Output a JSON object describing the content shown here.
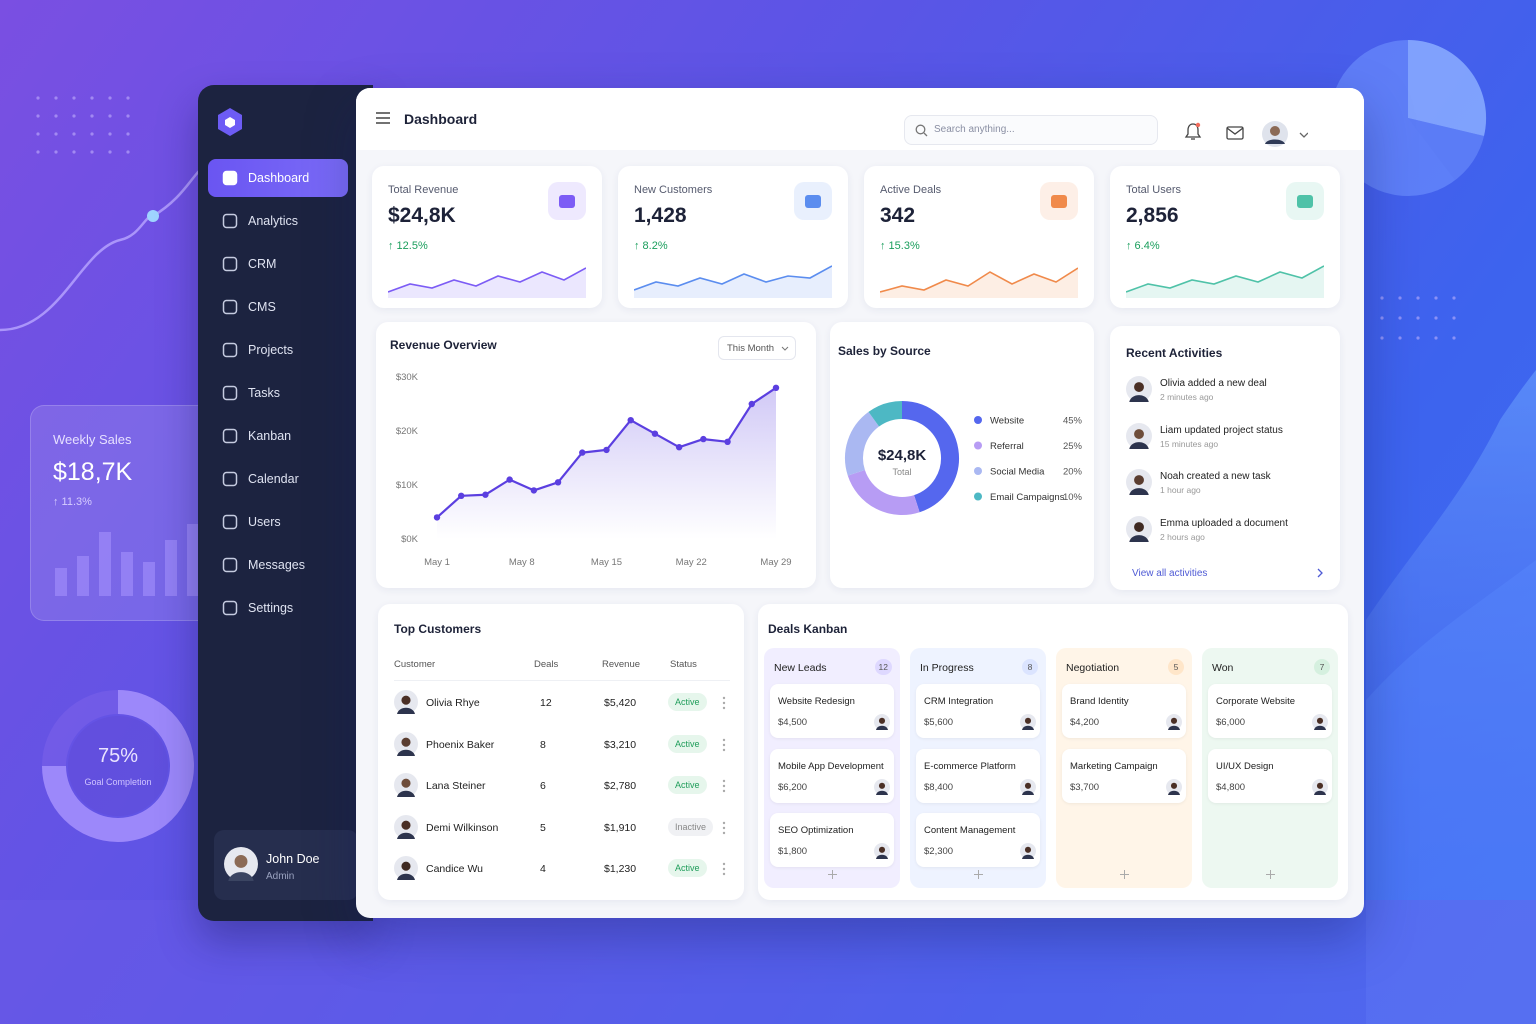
{
  "background": {
    "weekly_sales": {
      "title": "Weekly Sales",
      "value": "$18,7K",
      "change": "↑ 11.3%"
    },
    "goal": {
      "value": 75,
      "value_label": "75%",
      "label": "Goal Completion"
    }
  },
  "sidebar": {
    "nav": [
      "Dashboard",
      "Analytics",
      "CRM",
      "CMS",
      "Projects",
      "Tasks",
      "Kanban",
      "Calendar",
      "Users",
      "Messages",
      "Settings"
    ],
    "user": {
      "name": "John Doe",
      "role": "Admin"
    }
  },
  "header": {
    "title": "Dashboard",
    "search_placeholder": "Search anything..."
  },
  "kpis": [
    {
      "label": "Total Revenue",
      "value": "$24,8K",
      "change": "↑ 12.5%",
      "color": "#7c5cf5"
    },
    {
      "label": "New Customers",
      "value": "1,428",
      "change": "↑ 8.2%",
      "color": "#5b8def"
    },
    {
      "label": "Active Deals",
      "value": "342",
      "change": "↑ 15.3%",
      "color": "#f08a4b"
    },
    {
      "label": "Total Users",
      "value": "2,856",
      "change": "↑ 6.4%",
      "color": "#4fc2a8"
    }
  ],
  "chart_data": [
    {
      "type": "line",
      "title": "Revenue Overview",
      "period": "This Month",
      "color": "#5b3fe0",
      "x": [
        1,
        3,
        5,
        7,
        9,
        11,
        13,
        15,
        17,
        19,
        21,
        23,
        25,
        27,
        29
      ],
      "values": [
        4000,
        8000,
        8200,
        11000,
        9000,
        10500,
        16000,
        16500,
        22000,
        19500,
        17000,
        18500,
        18000,
        25000,
        28000
      ],
      "xlim": [
        1,
        29
      ],
      "xticks": [
        {
          "value": 1,
          "label": "May 1"
        },
        {
          "value": 8,
          "label": "May 8"
        },
        {
          "value": 15,
          "label": "May 15"
        },
        {
          "value": 22,
          "label": "May 22"
        },
        {
          "value": 29,
          "label": "May 29"
        }
      ],
      "ylim": [
        0,
        30000
      ],
      "yticks": [
        {
          "value": 0,
          "label": "$0K"
        },
        {
          "value": 10000,
          "label": "$10K"
        },
        {
          "value": 20000,
          "label": "$20K"
        },
        {
          "value": 30000,
          "label": "$30K"
        }
      ],
      "grid": false
    },
    {
      "type": "pie",
      "title": "Sales by Source",
      "center_label": "$24,8K",
      "center_sublabel": "Total",
      "categories": [
        "Website",
        "Referral",
        "Social Media",
        "Email Campaigns"
      ],
      "values": [
        45,
        25,
        20,
        10
      ],
      "value_labels": [
        "45%",
        "25%",
        "20%",
        "10%"
      ],
      "colors": [
        "#5567ee",
        "#b79cf4",
        "#aab8f2",
        "#4db8c4"
      ]
    }
  ],
  "activities": {
    "title": "Recent Activities",
    "items": [
      {
        "text": "Olivia added a new deal",
        "time": "2 minutes ago"
      },
      {
        "text": "Liam updated project status",
        "time": "15 minutes ago"
      },
      {
        "text": "Noah created a new task",
        "time": "1 hour ago"
      },
      {
        "text": "Emma uploaded a document",
        "time": "2 hours ago"
      }
    ],
    "link": "View all activities"
  },
  "customers": {
    "title": "Top Customers",
    "columns": [
      "Customer",
      "Deals",
      "Revenue",
      "Status"
    ],
    "rows": [
      [
        "Olivia Rhye",
        "12",
        "$5,420",
        "Active"
      ],
      [
        "Phoenix Baker",
        "8",
        "$3,210",
        "Active"
      ],
      [
        "Lana Steiner",
        "6",
        "$2,780",
        "Active"
      ],
      [
        "Demi Wilkinson",
        "5",
        "$1,910",
        "Inactive"
      ],
      [
        "Candice Wu",
        "4",
        "$1,230",
        "Active"
      ]
    ]
  },
  "kanban": {
    "title": "Deals Kanban",
    "columns": [
      {
        "name": "New Leads",
        "count": 12,
        "cards": [
          {
            "title": "Website Redesign",
            "amount": "$4,500"
          },
          {
            "title": "Mobile App Development",
            "amount": "$6,200"
          },
          {
            "title": "SEO Optimization",
            "amount": "$1,800"
          }
        ]
      },
      {
        "name": "In Progress",
        "count": 8,
        "cards": [
          {
            "title": "CRM Integration",
            "amount": "$5,600"
          },
          {
            "title": "E-commerce Platform",
            "amount": "$8,400"
          },
          {
            "title": "Content Management",
            "amount": "$2,300"
          }
        ]
      },
      {
        "name": "Negotiation",
        "count": 5,
        "cards": [
          {
            "title": "Brand Identity",
            "amount": "$4,200"
          },
          {
            "title": "Marketing Campaign",
            "amount": "$3,700"
          }
        ]
      },
      {
        "name": "Won",
        "count": 7,
        "cards": [
          {
            "title": "Corporate Website",
            "amount": "$6,000"
          },
          {
            "title": "UI/UX Design",
            "amount": "$4,800"
          }
        ]
      }
    ]
  }
}
